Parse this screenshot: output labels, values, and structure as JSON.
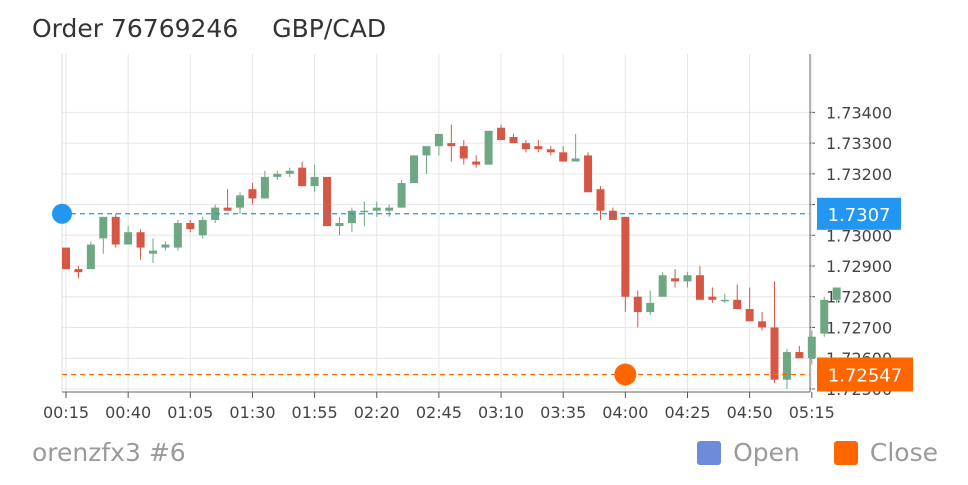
{
  "header": {
    "order_label": "Order 76769246",
    "pair": "GBP/CAD"
  },
  "footer": {
    "account": "orenzfx3 #6"
  },
  "legend": [
    {
      "label": "Open",
      "color": "#6f8ad8"
    },
    {
      "label": "Close",
      "color": "#ff6600"
    }
  ],
  "colors": {
    "up": "#6ea784",
    "down": "#d65745",
    "open_line": "#2196f3",
    "close_line": "#ff6600"
  },
  "chart_data": {
    "type": "candlestick",
    "ylim": [
      1.7249,
      1.7359
    ],
    "y_ticks": [
      "1.73400",
      "1.73300",
      "1.73200",
      "1.73100",
      "1.73000",
      "1.72900",
      "1.72800",
      "1.72700",
      "1.72600",
      "1.72500"
    ],
    "x_ticks": [
      "00:15",
      "00:40",
      "01:05",
      "01:30",
      "01:55",
      "02:20",
      "02:45",
      "03:10",
      "03:35",
      "04:00",
      "04:25",
      "04:50",
      "05:15"
    ],
    "x_interval_minutes": 5,
    "candles": [
      [
        1.7296,
        1.7296,
        1.7289,
        1.7289
      ],
      [
        1.7289,
        1.729,
        1.7286,
        1.7288
      ],
      [
        1.7289,
        1.7298,
        1.7289,
        1.7297
      ],
      [
        1.7299,
        1.7306,
        1.7294,
        1.7306
      ],
      [
        1.7306,
        1.7307,
        1.7296,
        1.7297
      ],
      [
        1.7297,
        1.7303,
        1.7297,
        1.7301
      ],
      [
        1.7301,
        1.7302,
        1.7292,
        1.7296
      ],
      [
        1.7294,
        1.7299,
        1.7291,
        1.7295
      ],
      [
        1.7296,
        1.7298,
        1.7295,
        1.7297
      ],
      [
        1.7296,
        1.7305,
        1.7295,
        1.7304
      ],
      [
        1.7304,
        1.7305,
        1.7301,
        1.7302
      ],
      [
        1.73,
        1.7306,
        1.7299,
        1.7305
      ],
      [
        1.7305,
        1.731,
        1.7304,
        1.7309
      ],
      [
        1.7309,
        1.7315,
        1.7308,
        1.7308
      ],
      [
        1.7309,
        1.7314,
        1.7307,
        1.7313
      ],
      [
        1.7315,
        1.7317,
        1.731,
        1.7312
      ],
      [
        1.7312,
        1.7321,
        1.7312,
        1.7319
      ],
      [
        1.7319,
        1.7321,
        1.7318,
        1.732
      ],
      [
        1.732,
        1.7322,
        1.7319,
        1.7321
      ],
      [
        1.7322,
        1.7324,
        1.7316,
        1.7316
      ],
      [
        1.7316,
        1.7323,
        1.7314,
        1.7319
      ],
      [
        1.7319,
        1.7319,
        1.7303,
        1.7303
      ],
      [
        1.7303,
        1.7306,
        1.73,
        1.7304
      ],
      [
        1.7304,
        1.7309,
        1.7301,
        1.7308
      ],
      [
        1.7308,
        1.7311,
        1.7303,
        1.7308
      ],
      [
        1.7308,
        1.7311,
        1.7306,
        1.7309
      ],
      [
        1.7308,
        1.731,
        1.7306,
        1.7309
      ],
      [
        1.7309,
        1.7318,
        1.7309,
        1.7317
      ],
      [
        1.7317,
        1.7326,
        1.7317,
        1.7326
      ],
      [
        1.7326,
        1.7328,
        1.732,
        1.7329
      ],
      [
        1.7329,
        1.7333,
        1.7326,
        1.7333
      ],
      [
        1.733,
        1.7336,
        1.7324,
        1.7329
      ],
      [
        1.7329,
        1.7331,
        1.7323,
        1.7325
      ],
      [
        1.7324,
        1.7326,
        1.7322,
        1.7323
      ],
      [
        1.7323,
        1.7334,
        1.7323,
        1.7334
      ],
      [
        1.7335,
        1.7336,
        1.7331,
        1.7331
      ],
      [
        1.7332,
        1.7333,
        1.733,
        1.733
      ],
      [
        1.733,
        1.7331,
        1.7327,
        1.7328
      ],
      [
        1.7329,
        1.7331,
        1.7327,
        1.7328
      ],
      [
        1.7328,
        1.7329,
        1.7326,
        1.7327
      ],
      [
        1.7327,
        1.7329,
        1.7324,
        1.7324
      ],
      [
        1.7324,
        1.7333,
        1.7324,
        1.7325
      ],
      [
        1.7326,
        1.7327,
        1.7315,
        1.7314
      ],
      [
        1.7315,
        1.7316,
        1.7305,
        1.7308
      ],
      [
        1.7308,
        1.7309,
        1.7305,
        1.7305
      ],
      [
        1.7306,
        1.7306,
        1.7275,
        1.728
      ],
      [
        1.728,
        1.7282,
        1.727,
        1.7275
      ],
      [
        1.7275,
        1.7282,
        1.7274,
        1.7278
      ],
      [
        1.728,
        1.7288,
        1.728,
        1.7287
      ],
      [
        1.7286,
        1.7289,
        1.7283,
        1.7285
      ],
      [
        1.7285,
        1.7288,
        1.7283,
        1.7287
      ],
      [
        1.7287,
        1.729,
        1.728,
        1.7279
      ],
      [
        1.728,
        1.7283,
        1.7278,
        1.7279
      ],
      [
        1.7279,
        1.7281,
        1.7278,
        1.7279
      ],
      [
        1.7279,
        1.7284,
        1.7276,
        1.7276
      ],
      [
        1.7276,
        1.7283,
        1.7273,
        1.7272
      ],
      [
        1.7272,
        1.7275,
        1.7269,
        1.727
      ],
      [
        1.727,
        1.7285,
        1.7252,
        1.7253
      ],
      [
        1.7253,
        1.7263,
        1.725,
        1.7262
      ],
      [
        1.7262,
        1.7264,
        1.726,
        1.726
      ],
      [
        1.726,
        1.7269,
        1.7258,
        1.7267
      ],
      [
        1.7268,
        1.728,
        1.7267,
        1.7279
      ],
      [
        1.7279,
        1.7283,
        1.7278,
        1.7283
      ]
    ],
    "open_price": 1.7307,
    "open_label": "1.7307",
    "close_price": 1.72547,
    "close_label": "1.72547",
    "close_marker_index": 45
  }
}
